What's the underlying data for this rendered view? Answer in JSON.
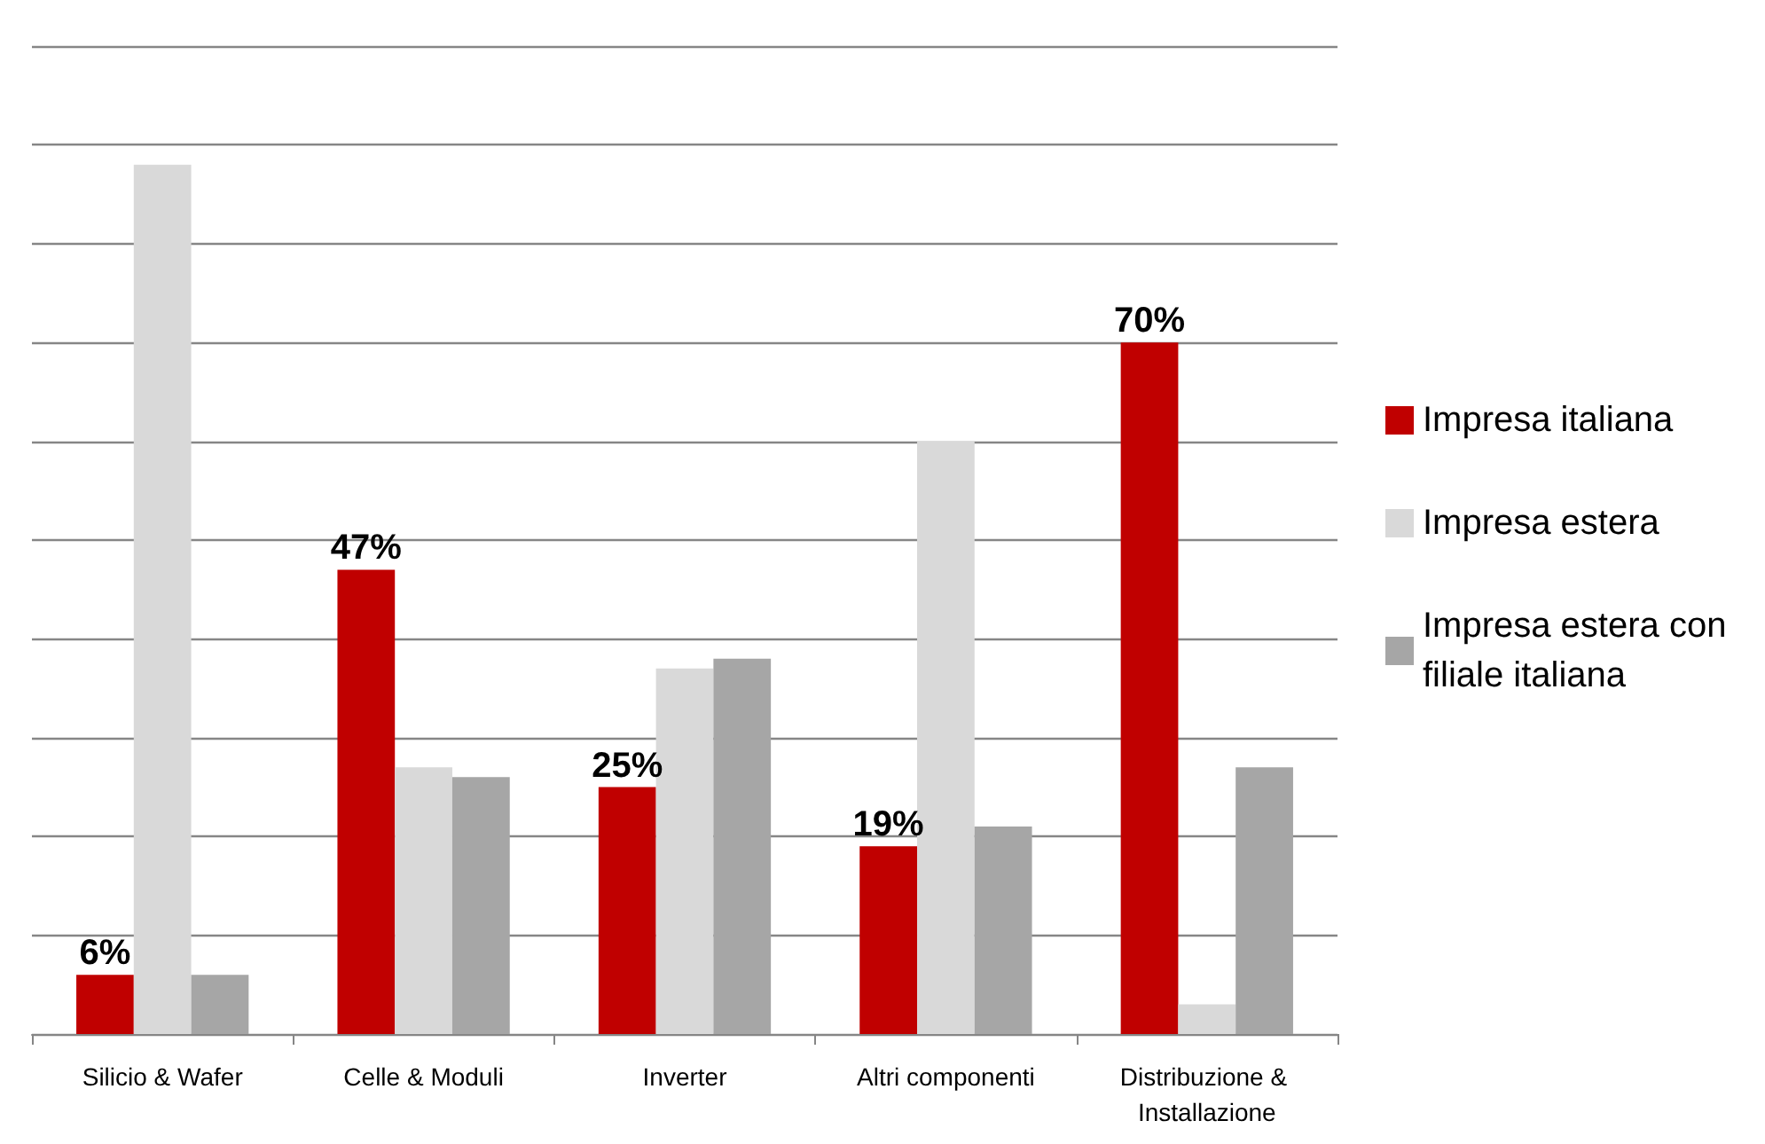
{
  "chart_data": {
    "type": "bar",
    "categories": [
      "Silicio & Wafer",
      "Celle & Moduli",
      "Inverter",
      "Altri componenti",
      "Distribuzione & Installazione"
    ],
    "series": [
      {
        "name": "Impresa italiana",
        "color": "#c00000",
        "values": [
          6,
          47,
          25,
          19,
          70
        ],
        "value_labels": [
          "6%",
          "47%",
          "25%",
          "19%",
          "70%"
        ]
      },
      {
        "name": "Impresa estera",
        "color": "#d9d9d9",
        "values": [
          88,
          27,
          37,
          60,
          3
        ]
      },
      {
        "name": "Impresa estera con filiale italiana",
        "color": "#a6a6a6",
        "values": [
          6,
          26,
          38,
          21,
          27
        ]
      }
    ],
    "ylim": [
      0,
      100
    ],
    "yticks": [
      {
        "value": 0,
        "label": null
      },
      {
        "value": 10,
        "label": null
      },
      {
        "value": 20,
        "label": null
      },
      {
        "value": 30,
        "label": null
      },
      {
        "value": 40,
        "label": null
      },
      {
        "value": 50,
        "label": null
      },
      {
        "value": 60,
        "label": null
      },
      {
        "value": 70,
        "label": null
      },
      {
        "value": 80,
        "label": null
      },
      {
        "value": 90,
        "label": null
      },
      {
        "value": 100,
        "label": null
      }
    ],
    "grid": "y",
    "legend": "right",
    "tick_labels": "x"
  }
}
